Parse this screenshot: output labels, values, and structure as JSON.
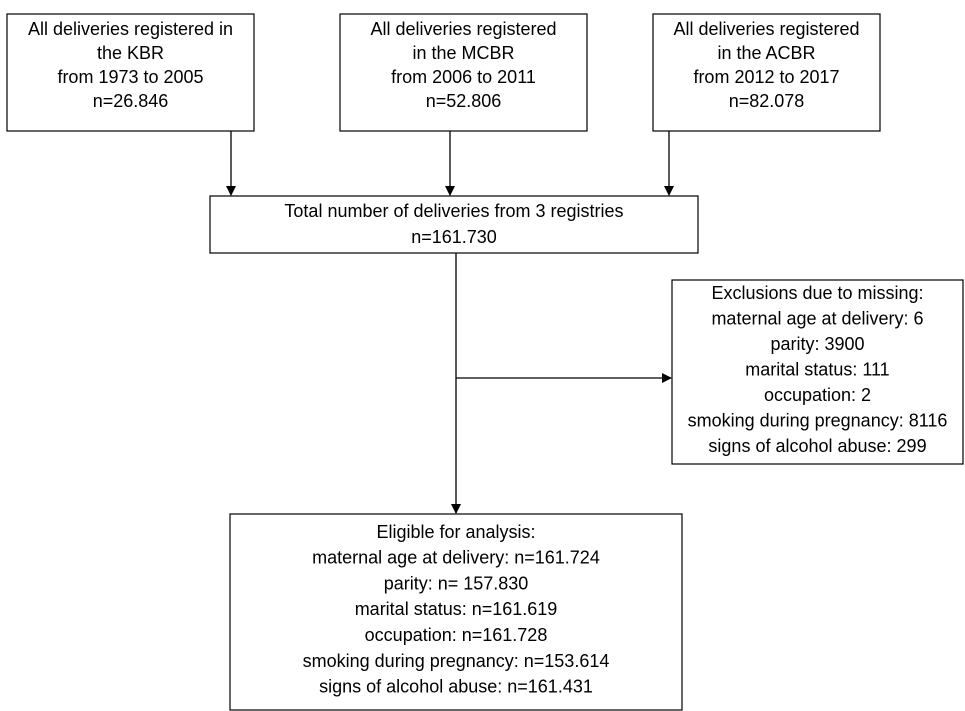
{
  "nodes": [
    {
      "lines": [
        "All deliveries registered in",
        "the KBR",
        "from 1973 to 2005",
        "n=26.846"
      ]
    },
    {
      "lines": [
        "All deliveries registered",
        "in the MCBR",
        "from 2006 to 2011",
        "n=52.806"
      ]
    },
    {
      "lines": [
        "All deliveries registered",
        "in the ACBR",
        "from 2012 to 2017",
        "n=82.078"
      ]
    },
    {
      "lines": [
        "Total number of deliveries from 3 registries",
        "n=161.730"
      ]
    },
    {
      "lines": [
        "Exclusions due to missing:",
        "maternal age at delivery: 6",
        "parity: 3900",
        "marital status: 111",
        "occupation: 2",
        "smoking during pregnancy: 8116",
        "signs of alcohol abuse: 299"
      ]
    },
    {
      "lines": [
        "Eligible for analysis:",
        "maternal age at delivery: n=161.724",
        "parity: n= 157.830",
        "marital status: n=161.619",
        "occupation: n=161.728",
        "smoking during pregnancy: n=153.614",
        "signs of alcohol abuse: n=161.431"
      ]
    }
  ]
}
